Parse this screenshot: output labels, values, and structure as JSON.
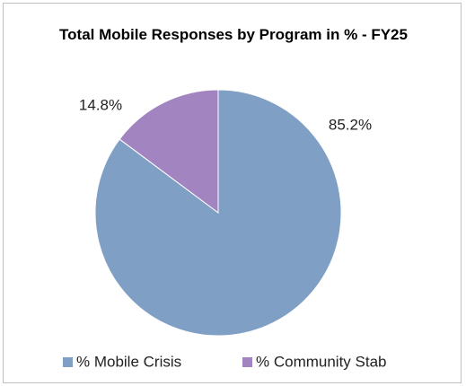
{
  "chart_data": {
    "type": "pie",
    "title": "Total Mobile Responses by Program in % - FY25",
    "categories": [
      "% Mobile Crisis",
      "% Community Stab"
    ],
    "values": [
      85.2,
      14.8
    ],
    "value_labels": [
      "85.2%",
      "14.8%"
    ],
    "colors": [
      "#7f9fc4",
      "#a285c0"
    ],
    "legend": "bottom"
  }
}
